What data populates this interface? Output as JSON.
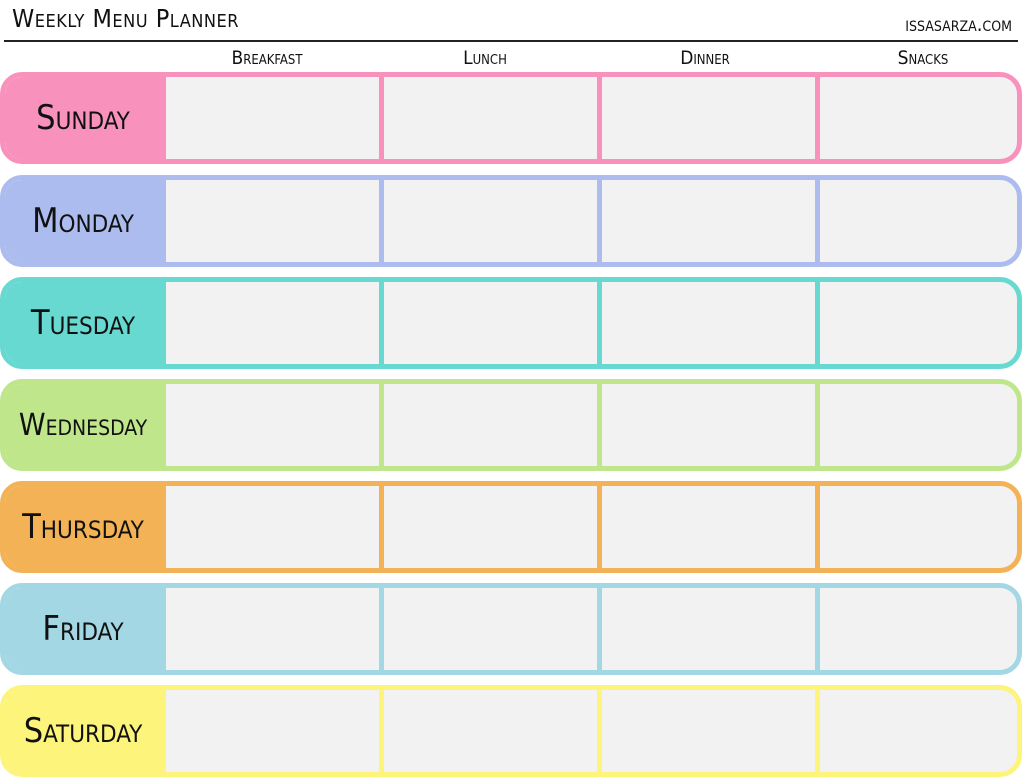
{
  "header": {
    "title": "Weekly Menu Planner",
    "site": "issasarza.com"
  },
  "columns": [
    "Breakfast",
    "Lunch",
    "Dinner",
    "Snacks"
  ],
  "days": [
    {
      "label": "Sunday",
      "color": "#f892bd"
    },
    {
      "label": "Monday",
      "color": "#adbcee"
    },
    {
      "label": "Tuesday",
      "color": "#68d9d1"
    },
    {
      "label": "Wednesday",
      "color": "#bfe68b"
    },
    {
      "label": "Thursday",
      "color": "#f2b255"
    },
    {
      "label": "Friday",
      "color": "#a3d7e3"
    },
    {
      "label": "Saturday",
      "color": "#fdf57b"
    }
  ]
}
